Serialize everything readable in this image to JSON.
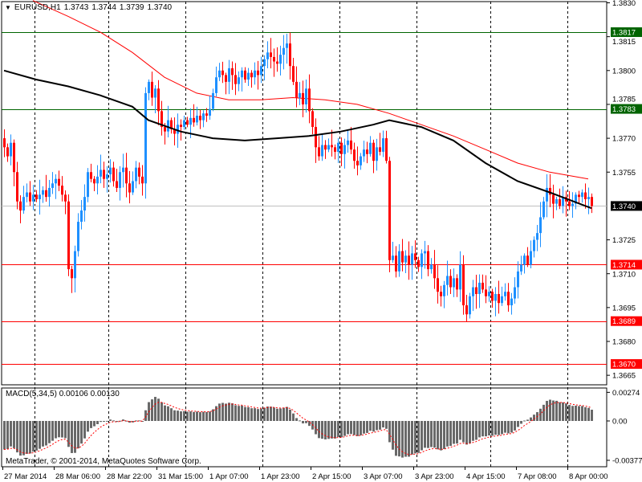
{
  "header": {
    "symbol": "EURUSD,H1",
    "open": "1.3743",
    "high": "1.3744",
    "low": "1.3739",
    "close": "1.3740"
  },
  "macd_label": {
    "name": "MACD(5,34,5)",
    "main": "0.00106",
    "signal": "0.00130"
  },
  "copyright": "MetaTrader, © 2001-2014, MetaQuotes Software Corp.",
  "colors": {
    "bull": "#1e90ff",
    "bear": "#ff0000",
    "ma_fast": "#000000",
    "ma_slow": "#ff0000",
    "support": "#ff0000",
    "resistance": "#006400",
    "bid": "#c0c0c0",
    "macd_hist": "#696969",
    "macd_signal": "#ff0000"
  },
  "chart_data": {
    "type": "candlestick",
    "symbol": "EURUSD",
    "timeframe": "H1",
    "ylim": [
      1.3661,
      1.3831
    ],
    "y_ticks": [
      "1.3830",
      "1.3815",
      "1.3800",
      "1.3785",
      "1.3770",
      "1.3755",
      "1.3725",
      "1.3710",
      "1.3695",
      "1.3680",
      "1.3665"
    ],
    "x_ticks": [
      {
        "bar": 0,
        "label": "27 Mar 2014"
      },
      {
        "bar": 16,
        "label": "28 Mar 06:00"
      },
      {
        "bar": 32,
        "label": "28 Mar 22:00"
      },
      {
        "bar": 48,
        "label": "31 Mar 15:00"
      },
      {
        "bar": 64,
        "label": "1 Apr 07:00"
      },
      {
        "bar": 80,
        "label": "1 Apr 23:00"
      },
      {
        "bar": 96,
        "label": "2 Apr 15:00"
      },
      {
        "bar": 112,
        "label": "3 Apr 07:00"
      },
      {
        "bar": 128,
        "label": "3 Apr 23:00"
      },
      {
        "bar": 144,
        "label": "4 Apr 15:00"
      },
      {
        "bar": 160,
        "label": "7 Apr 08:00"
      },
      {
        "bar": 176,
        "label": "8 Apr 00:00"
      }
    ],
    "day_separators": [
      10,
      33,
      57,
      81,
      105,
      129,
      152,
      176
    ],
    "closes": [
      1.3766,
      1.3762,
      1.3768,
      1.3755,
      1.3742,
      1.3738,
      1.3744,
      1.3746,
      1.3742,
      1.3745,
      1.3743,
      1.3745,
      1.3747,
      1.3744,
      1.3748,
      1.375,
      1.3752,
      1.3749,
      1.3745,
      1.3742,
      1.3712,
      1.3708,
      1.372,
      1.3733,
      1.3738,
      1.3744,
      1.3755,
      1.3752,
      1.375,
      1.3753,
      1.3756,
      1.3752,
      1.3754,
      1.3757,
      1.3751,
      1.3748,
      1.3755,
      1.3757,
      1.375,
      1.3746,
      1.3751,
      1.3757,
      1.3753,
      1.375,
      1.379,
      1.3795,
      1.3788,
      1.3792,
      1.3782,
      1.3775,
      1.3773,
      1.3778,
      1.3774,
      1.3772,
      1.3776,
      1.3775,
      1.3778,
      1.3776,
      1.3779,
      1.3777,
      1.378,
      1.3778,
      1.3781,
      1.378,
      1.3783,
      1.379,
      1.3797,
      1.38,
      1.3798,
      1.3795,
      1.3801,
      1.3798,
      1.3794,
      1.3797,
      1.38,
      1.3796,
      1.3799,
      1.3797,
      1.38,
      1.3798,
      1.3802,
      1.3805,
      1.3808,
      1.3806,
      1.3804,
      1.3803,
      1.3807,
      1.381,
      1.3812,
      1.3802,
      1.3795,
      1.3788,
      1.379,
      1.3785,
      1.3792,
      1.3782,
      1.3775,
      1.3766,
      1.3762,
      1.3767,
      1.3765,
      1.3767,
      1.3766,
      1.3764,
      1.3768,
      1.3763,
      1.3767,
      1.3769,
      1.3765,
      1.376,
      1.3758,
      1.3762,
      1.3765,
      1.3763,
      1.3768,
      1.376,
      1.3766,
      1.3764,
      1.377,
      1.376,
      1.3716,
      1.3718,
      1.3711,
      1.372,
      1.3715,
      1.3718,
      1.3714,
      1.3719,
      1.3716,
      1.3713,
      1.3719,
      1.372,
      1.3712,
      1.3714,
      1.3708,
      1.3702,
      1.37,
      1.3705,
      1.3709,
      1.3704,
      1.3708,
      1.3703,
      1.3714,
      1.3696,
      1.3692,
      1.37,
      1.3704,
      1.3701,
      1.3706,
      1.3703,
      1.37,
      1.3702,
      1.3698,
      1.3701,
      1.3697,
      1.37,
      1.3702,
      1.3696,
      1.3699,
      1.3704,
      1.3711,
      1.3714,
      1.3718,
      1.3714,
      1.372,
      1.3725,
      1.3728,
      1.3735,
      1.3742,
      1.3748,
      1.3745,
      1.3741,
      1.3743,
      1.374,
      1.3744,
      1.3742,
      1.374,
      1.3741,
      1.3745,
      1.3744,
      1.3746,
      1.3743,
      1.3744,
      1.374
    ],
    "ma_fast": [
      [
        0,
        1.38
      ],
      [
        10,
        1.3796
      ],
      [
        20,
        1.3793
      ],
      [
        30,
        1.3789
      ],
      [
        40,
        1.3784
      ],
      [
        45,
        1.3778
      ],
      [
        55,
        1.3773
      ],
      [
        65,
        1.377
      ],
      [
        75,
        1.3769
      ],
      [
        85,
        1.377
      ],
      [
        95,
        1.3771
      ],
      [
        105,
        1.3773
      ],
      [
        115,
        1.3776
      ],
      [
        120,
        1.3778
      ],
      [
        130,
        1.3775
      ],
      [
        140,
        1.3769
      ],
      [
        150,
        1.3759
      ],
      [
        160,
        1.3751
      ],
      [
        170,
        1.3746
      ],
      [
        183,
        1.3739
      ]
    ],
    "ma_slow": [
      [
        9,
        1.3831
      ],
      [
        20,
        1.3824
      ],
      [
        30,
        1.3817
      ],
      [
        40,
        1.3808
      ],
      [
        50,
        1.3797
      ],
      [
        60,
        1.379
      ],
      [
        70,
        1.3787
      ],
      [
        80,
        1.3787
      ],
      [
        90,
        1.3788
      ],
      [
        100,
        1.3787
      ],
      [
        110,
        1.3785
      ],
      [
        120,
        1.3781
      ],
      [
        130,
        1.3776
      ],
      [
        140,
        1.3771
      ],
      [
        150,
        1.3765
      ],
      [
        160,
        1.3759
      ],
      [
        170,
        1.3755
      ],
      [
        182,
        1.3752
      ]
    ],
    "levels": [
      {
        "price": 1.3817,
        "label": "1.3817",
        "kind": "resistance"
      },
      {
        "price": 1.3783,
        "label": "1.3783",
        "kind": "resistance"
      },
      {
        "price": 1.374,
        "label": "1.3740",
        "kind": "bid"
      },
      {
        "price": 1.3714,
        "label": "1.3714",
        "kind": "support"
      },
      {
        "price": 1.3689,
        "label": "1.3689",
        "kind": "support"
      },
      {
        "price": 1.367,
        "label": "1.3670",
        "kind": "support"
      }
    ],
    "macd": {
      "fast": 5,
      "slow": 34,
      "signal": 5,
      "ylim": [
        -0.00377,
        0.00274
      ],
      "y_ticks": [
        "0.00274",
        "0.00",
        "-0.00377"
      ]
    }
  }
}
